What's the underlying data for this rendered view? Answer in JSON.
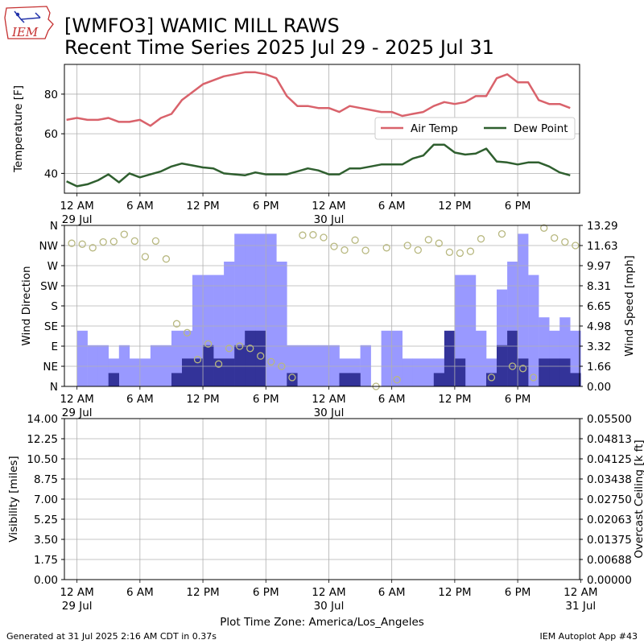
{
  "header": {
    "title_line1": "[WMFO3] WAMIC MILL RAWS",
    "title_line2": "Recent Time Series 2025 Jul 29 - 2025 Jul 31",
    "logo_text": "IEM"
  },
  "footer": {
    "generated": "Generated at 31 Jul 2025 2:16 AM CDT in 0.37s",
    "app": "IEM Autoplot App #43",
    "timezone_label": "Plot Time Zone: America/Los_Angeles"
  },
  "colors": {
    "air_temp": "#d9626b",
    "dew_point": "#2f5f2f",
    "wind_speed_fill": "#9999ff",
    "wind_gust_fill": "#333399",
    "wind_dir_marker": "#b8b880",
    "ceiling_label": "#008000"
  },
  "chart_data": [
    {
      "type": "line",
      "ylabel": "Temperature [F]",
      "ylim": [
        30,
        95
      ],
      "yticks": [
        40,
        60,
        80
      ],
      "grid": true,
      "legend_position": "center-right",
      "x_hours_from_jul29_0000": [
        -1,
        0,
        1,
        2,
        3,
        4,
        5,
        6,
        7,
        8,
        9,
        10,
        11,
        12,
        13,
        14,
        15,
        16,
        17,
        18,
        19,
        20,
        21,
        22,
        23,
        24,
        25,
        26,
        27,
        28,
        29,
        30,
        31,
        32,
        33,
        34,
        35,
        36,
        37,
        38,
        39,
        40,
        41,
        42,
        43,
        44,
        45,
        46,
        47
      ],
      "series": [
        {
          "name": "Air Temp",
          "values": [
            67,
            68,
            67,
            67,
            68,
            66,
            66,
            67,
            64,
            68,
            70,
            77,
            81,
            85,
            87,
            89,
            90,
            91,
            91,
            90,
            88,
            79,
            74,
            74,
            73,
            73,
            71,
            74,
            73,
            72,
            71,
            71,
            69,
            70,
            71,
            74,
            76,
            75,
            76,
            79,
            79,
            88,
            90,
            86,
            86,
            77,
            75,
            75,
            73
          ]
        },
        {
          "name": "Dew Point",
          "values": [
            36,
            33.5,
            34.5,
            36.5,
            39.5,
            35.5,
            40,
            38,
            39.5,
            41,
            43.5,
            45,
            44,
            43,
            42.5,
            40,
            39.5,
            39,
            40.5,
            39.5,
            39.5,
            39.5,
            41,
            42.5,
            41.5,
            39.5,
            39.5,
            42.5,
            42.5,
            43.5,
            44.5,
            44.5,
            44.5,
            47.5,
            49,
            54.5,
            54.5,
            50.5,
            49.5,
            50,
            52.5,
            46,
            45.5,
            44.5,
            45.5,
            45.5,
            43.5,
            40.5,
            39
          ]
        }
      ]
    },
    {
      "type": "bar",
      "ylabel": "Wind Direction",
      "ylabel_right": "Wind Speed [mph]",
      "direction_ticks": [
        "N",
        "NE",
        "E",
        "SE",
        "S",
        "SW",
        "W",
        "NW",
        "N"
      ],
      "speed_ticks": [
        "0.00",
        "1.66",
        "3.32",
        "4.98",
        "6.65",
        "8.31",
        "9.97",
        "11.63",
        "13.29"
      ],
      "speed_ylim": [
        0,
        13.29
      ],
      "grid": true,
      "x_hours_from_jul29_0000": [
        -1,
        0,
        1,
        2,
        3,
        4,
        5,
        6,
        7,
        8,
        9,
        10,
        11,
        12,
        13,
        14,
        15,
        16,
        17,
        18,
        19,
        20,
        21,
        22,
        23,
        24,
        25,
        26,
        27,
        28,
        29,
        30,
        31,
        32,
        33,
        34,
        35,
        36,
        37,
        38,
        39,
        40,
        41,
        42,
        43,
        44,
        45,
        46,
        47
      ],
      "series": [
        {
          "name": "Wind Speed",
          "values": [
            0,
            4.6,
            3.4,
            3.4,
            2.3,
            3.4,
            2.3,
            2.3,
            3.4,
            3.4,
            4.6,
            4.6,
            9.2,
            9.2,
            9.2,
            10.3,
            12.6,
            12.6,
            12.6,
            12.6,
            10.3,
            3.4,
            3.4,
            3.4,
            3.4,
            3.4,
            2.3,
            2.3,
            3.4,
            0,
            4.6,
            4.6,
            2.3,
            2.3,
            2.3,
            2.3,
            3.4,
            9.2,
            9.2,
            4.6,
            2.3,
            8.0,
            10.3,
            12.6,
            9.2,
            5.7,
            4.6,
            5.7,
            4.6
          ]
        },
        {
          "name": "Wind Gust",
          "values": [
            0,
            0,
            0,
            0,
            1.1,
            0,
            0,
            0,
            0,
            0,
            1.1,
            2.3,
            2.3,
            3.4,
            2.3,
            2.3,
            3.4,
            4.6,
            4.6,
            0,
            0,
            1.1,
            0,
            0,
            0,
            0,
            1.1,
            1.1,
            0,
            0,
            0,
            0,
            0,
            0,
            0,
            1.1,
            4.6,
            2.3,
            0,
            0,
            1.1,
            3.4,
            4.6,
            2.3,
            0,
            2.3,
            2.3,
            2.3,
            1.1
          ]
        },
        {
          "name": "Wind Direction",
          "type": "scatter",
          "x_hours_from_jul29_0000": [
            -1,
            0,
            1,
            2,
            3,
            4,
            5,
            6,
            7,
            8,
            9,
            10,
            11,
            12,
            13,
            14,
            15,
            16,
            17,
            18,
            19,
            20,
            21,
            22,
            23,
            24,
            25,
            26,
            27,
            28,
            29,
            30,
            31,
            32,
            33,
            34,
            35,
            36,
            37,
            38,
            39,
            40,
            41,
            42,
            43,
            44,
            45,
            46,
            47
          ],
          "values_deg": [
            320,
            318,
            310,
            323,
            324,
            340,
            325,
            290,
            325,
            285,
            140,
            120,
            60,
            95,
            50,
            85,
            90,
            85,
            68,
            55,
            45,
            20,
            338,
            339,
            333,
            313,
            305,
            327,
            304,
            0,
            310,
            15,
            315,
            305,
            328,
            320,
            300,
            298,
            302,
            330,
            20,
            341,
            45,
            40,
            20,
            354,
            332,
            323,
            315
          ]
        }
      ]
    },
    {
      "type": "line",
      "ylabel": "Visibility [miles]",
      "ylabel_right": "Overcast Ceiling [k ft]",
      "visibility_ticks": [
        "0.00",
        "1.75",
        "3.50",
        "5.25",
        "7.00",
        "8.75",
        "10.50",
        "12.25",
        "14.00"
      ],
      "ceiling_ticks": [
        "0.00000",
        "0.00688",
        "0.01375",
        "0.02063",
        "0.02750",
        "0.03438",
        "0.04125",
        "0.04813",
        "0.05500"
      ],
      "grid": true,
      "series": []
    }
  ],
  "xaxis": {
    "ticks": [
      {
        "hour": 0,
        "line1": "12 AM",
        "line2": "29 Jul"
      },
      {
        "hour": 6,
        "line1": "6 AM",
        "line2": ""
      },
      {
        "hour": 12,
        "line1": "12 PM",
        "line2": ""
      },
      {
        "hour": 18,
        "line1": "6 PM",
        "line2": ""
      },
      {
        "hour": 24,
        "line1": "12 AM",
        "line2": "30 Jul"
      },
      {
        "hour": 30,
        "line1": "6 AM",
        "line2": ""
      },
      {
        "hour": 36,
        "line1": "12 PM",
        "line2": ""
      },
      {
        "hour": 42,
        "line1": "6 PM",
        "line2": ""
      }
    ],
    "bottom_ticks": [
      {
        "hour": 0,
        "line1": "12 AM",
        "line2": "29 Jul"
      },
      {
        "hour": 6,
        "line1": "6 AM",
        "line2": ""
      },
      {
        "hour": 12,
        "line1": "12 PM",
        "line2": ""
      },
      {
        "hour": 18,
        "line1": "6 PM",
        "line2": ""
      },
      {
        "hour": 24,
        "line1": "12 AM",
        "line2": "30 Jul"
      },
      {
        "hour": 30,
        "line1": "6 AM",
        "line2": ""
      },
      {
        "hour": 36,
        "line1": "12 PM",
        "line2": ""
      },
      {
        "hour": 42,
        "line1": "6 PM",
        "line2": ""
      },
      {
        "hour": 48,
        "line1": "12 AM",
        "line2": "31 Jul"
      }
    ]
  }
}
